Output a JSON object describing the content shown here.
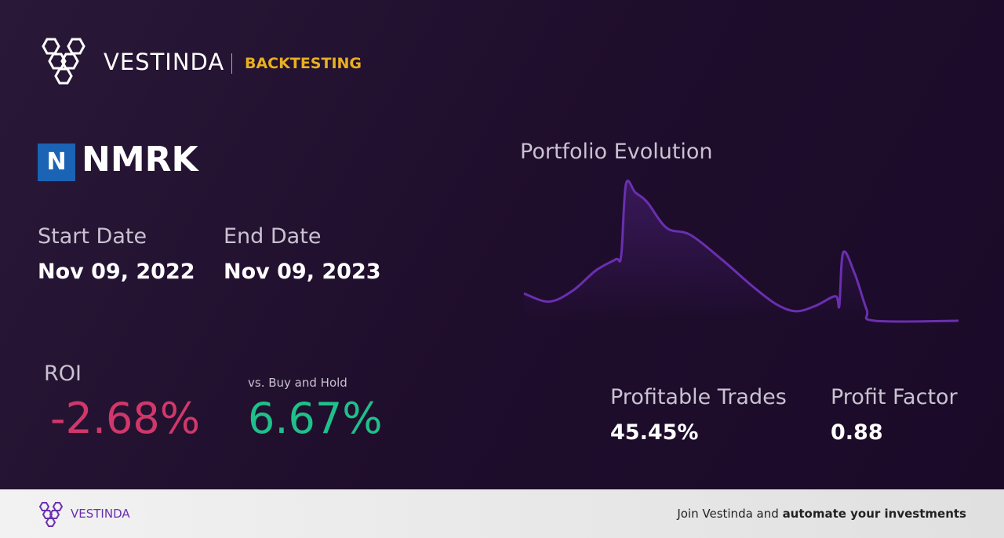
{
  "header": {
    "brand": "VESTINDA",
    "section": "BACKTESTING"
  },
  "ticker": {
    "logo_letter": "N",
    "symbol": "NMRK"
  },
  "dates": {
    "start_label": "Start Date",
    "start": "Nov 09, 2022",
    "end_label": "End Date",
    "end": "Nov 09, 2023"
  },
  "roi": {
    "label": "ROI",
    "value": "-2.68%",
    "benchmark_label": "vs. Buy and Hold",
    "benchmark": "6.67%"
  },
  "portfolio_chart": {
    "type": "line",
    "title": "Portfolio Evolution",
    "color": "#6a2fb0",
    "x": [
      0,
      32,
      62,
      92,
      117,
      124,
      130,
      142,
      157,
      182,
      212,
      252,
      292,
      322,
      347,
      372,
      397,
      402,
      407,
      422,
      437,
      447,
      554
    ],
    "values": [
      20,
      14,
      22,
      37,
      45,
      48,
      100,
      94,
      87,
      68,
      63,
      45,
      25,
      12,
      7,
      11,
      18,
      11,
      50,
      34,
      8,
      0,
      0
    ],
    "xlim": [
      0,
      554
    ],
    "ylim": [
      0,
      100
    ]
  },
  "stats": {
    "trades_label": "Profitable Trades",
    "trades": "45.45%",
    "factor_label": "Profit Factor",
    "factor": "0.88"
  },
  "footer": {
    "brand": "VESTINDA",
    "cta_plain": "Join Vestinda and",
    "cta_bold": "automate your investments"
  }
}
